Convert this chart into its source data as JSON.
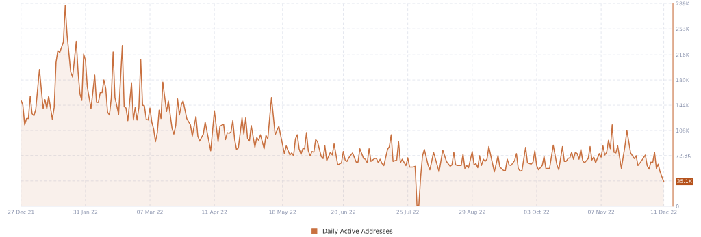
{
  "chart_data": {
    "type": "area",
    "x": [
      "2021-12-27",
      "2021-12-28",
      "2021-12-29",
      "2021-12-30",
      "2021-12-31",
      "2022-01-01",
      "2022-01-02",
      "2022-01-03",
      "2022-01-04",
      "2022-01-06",
      "2022-01-08",
      "2022-01-09",
      "2022-01-10",
      "2022-01-11",
      "2022-01-13",
      "2022-01-14",
      "2022-01-15",
      "2022-01-16",
      "2022-01-17",
      "2022-01-19",
      "2022-01-20",
      "2022-01-21",
      "2022-01-23",
      "2022-01-24",
      "2022-01-26",
      "2022-01-27",
      "2022-01-28",
      "2022-01-29",
      "2022-01-30",
      "2022-01-31",
      "2022-02-01",
      "2022-02-03",
      "2022-02-05",
      "2022-02-06",
      "2022-02-07",
      "2022-02-08",
      "2022-02-09",
      "2022-02-10",
      "2022-02-11",
      "2022-02-12",
      "2022-02-13",
      "2022-02-14",
      "2022-02-15",
      "2022-02-16",
      "2022-02-18",
      "2022-02-20",
      "2022-02-21",
      "2022-02-22",
      "2022-02-23",
      "2022-02-25",
      "2022-02-26",
      "2022-02-27",
      "2022-02-28",
      "2022-03-01",
      "2022-03-02",
      "2022-03-03",
      "2022-03-04",
      "2022-03-05",
      "2022-03-06",
      "2022-03-07",
      "2022-03-08",
      "2022-03-09",
      "2022-03-10",
      "2022-03-11",
      "2022-03-12",
      "2022-03-13",
      "2022-03-14",
      "2022-03-16",
      "2022-03-17",
      "2022-03-19",
      "2022-03-20",
      "2022-03-21",
      "2022-03-22",
      "2022-03-23",
      "2022-03-24",
      "2022-03-25",
      "2022-03-27",
      "2022-03-29",
      "2022-03-30",
      "2022-04-01",
      "2022-04-02",
      "2022-04-03",
      "2022-04-05",
      "2022-04-06",
      "2022-04-09",
      "2022-04-11",
      "2022-04-13",
      "2022-04-14",
      "2022-04-16",
      "2022-04-17",
      "2022-04-18",
      "2022-04-19",
      "2022-04-20",
      "2022-04-21",
      "2022-04-22",
      "2022-04-23",
      "2022-04-24",
      "2022-04-26",
      "2022-04-27",
      "2022-04-28",
      "2022-04-29",
      "2022-04-30",
      "2022-05-01",
      "2022-05-03",
      "2022-05-04",
      "2022-05-05",
      "2022-05-06",
      "2022-05-08",
      "2022-05-09",
      "2022-05-10",
      "2022-05-12",
      "2022-05-14",
      "2022-05-16",
      "2022-05-19",
      "2022-05-20",
      "2022-05-22",
      "2022-05-23",
      "2022-05-24",
      "2022-05-25",
      "2022-05-26",
      "2022-05-27",
      "2022-05-28",
      "2022-05-29",
      "2022-05-30",
      "2022-05-31",
      "2022-06-01",
      "2022-06-02",
      "2022-06-03",
      "2022-06-04",
      "2022-06-05",
      "2022-06-06",
      "2022-06-08",
      "2022-06-09",
      "2022-06-10",
      "2022-06-11",
      "2022-06-13",
      "2022-06-14",
      "2022-06-15",
      "2022-06-17",
      "2022-06-19",
      "2022-06-20",
      "2022-06-21",
      "2022-06-22",
      "2022-06-23",
      "2022-06-25",
      "2022-06-27",
      "2022-06-28",
      "2022-06-29",
      "2022-07-01",
      "2022-07-02",
      "2022-07-03",
      "2022-07-04",
      "2022-07-05",
      "2022-07-07",
      "2022-07-08",
      "2022-07-09",
      "2022-07-10",
      "2022-07-11",
      "2022-07-12",
      "2022-07-14",
      "2022-07-15",
      "2022-07-16",
      "2022-07-17",
      "2022-07-19",
      "2022-07-20",
      "2022-07-21",
      "2022-07-22",
      "2022-07-24",
      "2022-07-25",
      "2022-07-26",
      "2022-07-28",
      "2022-07-29",
      "2022-07-30",
      "2022-07-31",
      "2022-08-01",
      "2022-08-02",
      "2022-08-03",
      "2022-08-05",
      "2022-08-06",
      "2022-08-07",
      "2022-08-08",
      "2022-08-11",
      "2022-08-13",
      "2022-08-15",
      "2022-08-17",
      "2022-08-18",
      "2022-08-19",
      "2022-08-20",
      "2022-08-21",
      "2022-08-23",
      "2022-08-24",
      "2022-08-25",
      "2022-08-26",
      "2022-08-27",
      "2022-08-29",
      "2022-08-30",
      "2022-08-31",
      "2022-09-01",
      "2022-09-02",
      "2022-09-03",
      "2022-09-04",
      "2022-09-05",
      "2022-09-06",
      "2022-09-07",
      "2022-09-09",
      "2022-09-10",
      "2022-09-12",
      "2022-09-13",
      "2022-09-15",
      "2022-09-16",
      "2022-09-17",
      "2022-09-18",
      "2022-09-19",
      "2022-09-21",
      "2022-09-22",
      "2022-09-23",
      "2022-09-24",
      "2022-09-25",
      "2022-09-27",
      "2022-09-28",
      "2022-09-30",
      "2022-10-01",
      "2022-10-02",
      "2022-10-03",
      "2022-10-04",
      "2022-10-06",
      "2022-10-07",
      "2022-10-08",
      "2022-10-10",
      "2022-10-12",
      "2022-10-14",
      "2022-10-15",
      "2022-10-17",
      "2022-10-18",
      "2022-10-19",
      "2022-10-20",
      "2022-10-21",
      "2022-10-22",
      "2022-10-23",
      "2022-10-24",
      "2022-10-25",
      "2022-10-26",
      "2022-10-27",
      "2022-10-28",
      "2022-10-29",
      "2022-10-31",
      "2022-11-01",
      "2022-11-02",
      "2022-11-03",
      "2022-11-04",
      "2022-11-06",
      "2022-11-07",
      "2022-11-08",
      "2022-11-09",
      "2022-11-10",
      "2022-11-11",
      "2022-11-12",
      "2022-11-13",
      "2022-11-14",
      "2022-11-15",
      "2022-11-16",
      "2022-11-18",
      "2022-11-20",
      "2022-11-21",
      "2022-11-23",
      "2022-11-25",
      "2022-11-26",
      "2022-11-27",
      "2022-11-29",
      "2022-12-01",
      "2022-12-02",
      "2022-12-03",
      "2022-12-04",
      "2022-12-05",
      "2022-12-06",
      "2022-12-07",
      "2022-12-08",
      "2022-12-09",
      "2022-12-11"
    ],
    "series": [
      {
        "name": "Daily Active Addresses",
        "color": "#c8703f",
        "values": [
          151000,
          144000,
          116000,
          125000,
          125000,
          157000,
          132000,
          129000,
          138000,
          195000,
          139000,
          152000,
          139000,
          157000,
          124000,
          141000,
          205000,
          222000,
          219000,
          234000,
          286000,
          245000,
          191000,
          184000,
          235000,
          191000,
          160000,
          151000,
          217000,
          208000,
          170000,
          139000,
          187000,
          148000,
          148000,
          162000,
          162000,
          180000,
          168000,
          134000,
          130000,
          154000,
          220000,
          155000,
          131000,
          229000,
          142000,
          140000,
          122000,
          176000,
          123000,
          141000,
          123000,
          141000,
          209000,
          144000,
          143000,
          124000,
          123000,
          140000,
          120000,
          110000,
          92000,
          105000,
          137000,
          125000,
          177000,
          135000,
          150000,
          111000,
          103000,
          115000,
          153000,
          130000,
          144000,
          150000,
          125000,
          116000,
          100000,
          128000,
          100000,
          93000,
          103000,
          120000,
          79000,
          136000,
          92000,
          114000,
          117000,
          95000,
          105000,
          104000,
          106000,
          122000,
          95000,
          81000,
          83000,
          126000,
          103000,
          126000,
          97000,
          93000,
          115000,
          84000,
          98000,
          94000,
          102000,
          82000,
          101000,
          96000,
          155000,
          102000,
          114000,
          75000,
          86000,
          73000,
          76000,
          72000,
          96000,
          102000,
          82000,
          74000,
          82000,
          82000,
          105000,
          79000,
          72000,
          78000,
          77000,
          95000,
          92000,
          71000,
          68000,
          86000,
          65000,
          77000,
          73000,
          89000,
          59000,
          62000,
          78000,
          66000,
          64000,
          69000,
          76000,
          63000,
          63000,
          82000,
          68000,
          67000,
          62000,
          82000,
          64000,
          68000,
          68000,
          62000,
          67000,
          61000,
          58000,
          81000,
          85000,
          102000,
          64000,
          66000,
          92000,
          62000,
          67000,
          58000,
          69000,
          56000,
          56000,
          57000,
          1000,
          1000,
          42000,
          72000,
          81000,
          59000,
          52000,
          64000,
          77000,
          49000,
          80000,
          64000,
          57000,
          59000,
          77000,
          59000,
          58000,
          58000,
          74000,
          54000,
          58000,
          55000,
          78000,
          59000,
          61000,
          55000,
          72000,
          58000,
          67000,
          64000,
          67000,
          85000,
          61000,
          49000,
          72000,
          56000,
          51000,
          51000,
          67000,
          59000,
          58000,
          65000,
          75000,
          54000,
          50000,
          51000,
          84000,
          62000,
          60000,
          63000,
          79000,
          58000,
          52000,
          58000,
          71000,
          54000,
          54000,
          87000,
          59000,
          52000,
          85000,
          64000,
          64000,
          68000,
          69000,
          77000,
          67000,
          77000,
          75000,
          67000,
          81000,
          65000,
          62000,
          68000,
          85000,
          66000,
          70000,
          62000,
          75000,
          70000,
          86000,
          73000,
          77000,
          94000,
          82000,
          116000,
          77000,
          76000,
          86000,
          54000,
          87000,
          108000,
          76000,
          68000,
          72000,
          58000,
          65000,
          73000,
          58000,
          53000,
          63000,
          62000,
          77000,
          54000,
          60000,
          49000,
          35100
        ]
      }
    ],
    "xlim": [
      "2021-12-27",
      "2022-12-16"
    ],
    "xticks": [
      {
        "value": "2021-12-27",
        "label": "27 Dec 21"
      },
      {
        "value": "2022-01-31",
        "label": "31 Jan 22"
      },
      {
        "value": "2022-03-07",
        "label": "07 Mar 22"
      },
      {
        "value": "2022-04-11",
        "label": "11 Apr 22"
      },
      {
        "value": "2022-05-18",
        "label": "18 May 22"
      },
      {
        "value": "2022-06-20",
        "label": "20 Jun 22"
      },
      {
        "value": "2022-07-25",
        "label": "25 Jul 22"
      },
      {
        "value": "2022-08-29",
        "label": "29 Aug 22"
      },
      {
        "value": "2022-10-03",
        "label": "03 Oct 22"
      },
      {
        "value": "2022-11-07",
        "label": "07 Nov 22"
      },
      {
        "value": "2022-12-11",
        "label": "11 Dec 22"
      }
    ],
    "ylim": [
      0,
      289000
    ],
    "yticks": [
      0,
      {
        "value": 36100,
        "label": null
      },
      {
        "value": 72300,
        "label": "72.3K"
      },
      {
        "value": 108000,
        "label": "108K"
      },
      {
        "value": 144000,
        "label": "144K"
      },
      {
        "value": 180000,
        "label": "180K"
      },
      {
        "value": 216000,
        "label": "216K"
      },
      {
        "value": 253000,
        "label": "253K"
      },
      {
        "value": 289000,
        "label": "289K"
      }
    ],
    "annotations": [
      {
        "text": "35.1K",
        "x": "2022-12-11",
        "y": 35100
      }
    ],
    "grid": true,
    "legend": "bottom",
    "line_style": "solid"
  }
}
